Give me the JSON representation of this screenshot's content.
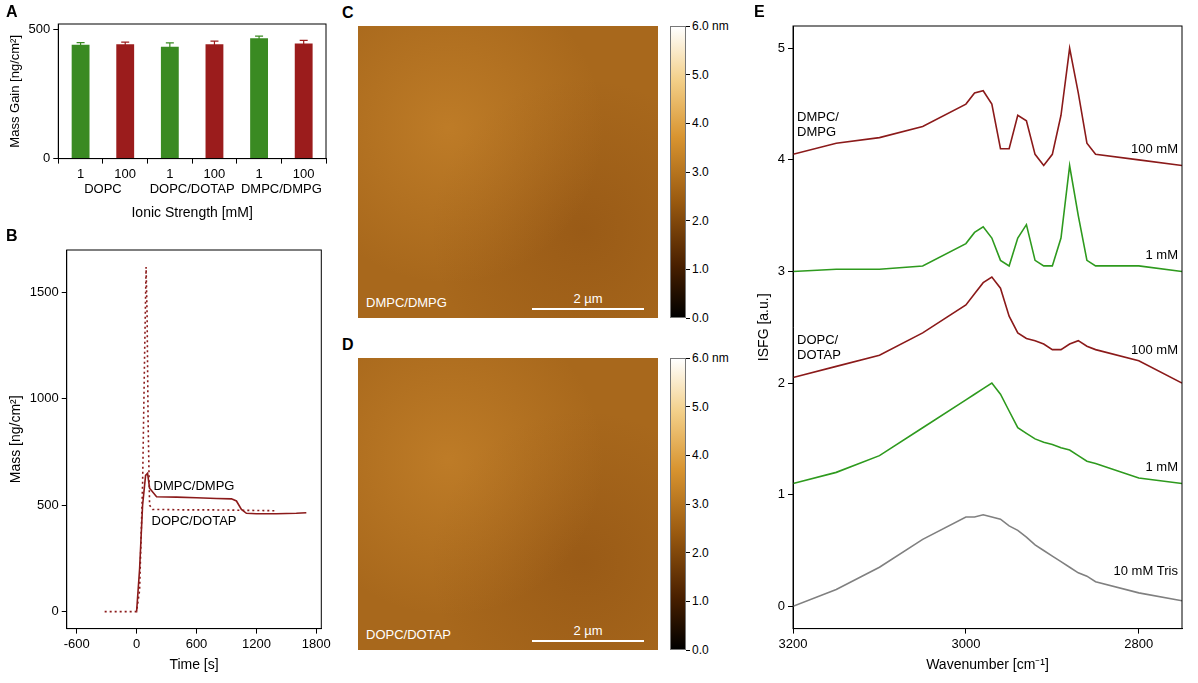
{
  "chart_data": [
    {
      "type": "bar",
      "panel": "A",
      "x_label": "Ionic Strength [mM]",
      "y_label": "Mass Gain [ng/cm²]",
      "categories": [
        "1",
        "100",
        "1",
        "100",
        "1",
        "100"
      ],
      "groups": [
        "DOPC",
        "DOPC/DOTAP",
        "DMPC/DMPG"
      ],
      "values": [
        440,
        442,
        432,
        442,
        465,
        445
      ],
      "errors": [
        8,
        8,
        15,
        12,
        8,
        12
      ],
      "colors": [
        "#3a8a22",
        "#9b1c1c",
        "#3a8a22",
        "#9b1c1c",
        "#3a8a22",
        "#9b1c1c"
      ],
      "ylim": [
        0,
        520
      ],
      "yticks": [
        0,
        500
      ],
      "grid": false
    },
    {
      "type": "line",
      "panel": "B",
      "x_label": "Time [s]",
      "y_label": "Mass [ng/cm²]",
      "xlim": [
        -700,
        1850
      ],
      "xticks": [
        -600,
        0,
        600,
        1200,
        1800
      ],
      "ylim": [
        -80,
        1700
      ],
      "yticks": [
        0,
        500,
        1000,
        1500
      ],
      "grid": false,
      "series": [
        {
          "name": "DMPC/DMPG",
          "color": "#8b1a1a",
          "line_style": "solid",
          "x": [
            0,
            30,
            60,
            90,
            110,
            130,
            200,
            400,
            600,
            800,
            950,
            1000,
            1050,
            1100,
            1200,
            1400,
            1600,
            1700
          ],
          "values": [
            0,
            200,
            500,
            640,
            650,
            580,
            540,
            538,
            535,
            532,
            530,
            520,
            480,
            462,
            460,
            460,
            462,
            465
          ]
        },
        {
          "name": "DOPC/DOTAP",
          "color": "#8b1a1a",
          "line_style": "dotted",
          "x": [
            -320,
            -100,
            0,
            30,
            60,
            80,
            95,
            105,
            115,
            130,
            160,
            250,
            500,
            800,
            1100,
            1400
          ],
          "values": [
            0,
            0,
            0,
            100,
            600,
            1200,
            1620,
            1400,
            900,
            500,
            480,
            480,
            478,
            478,
            476,
            474
          ]
        }
      ]
    },
    {
      "type": "image",
      "panel": "C",
      "label": "DMPC/DMPG",
      "scale_bar": "2 µm",
      "colorbar": {
        "range": [
          0,
          6
        ],
        "ticks": [
          {
            "value": 0,
            "label": "0.0"
          },
          {
            "value": 1,
            "label": "1.0"
          },
          {
            "value": 2,
            "label": "2.0"
          },
          {
            "value": 3,
            "label": "3.0"
          },
          {
            "value": 4,
            "label": "4.0"
          },
          {
            "value": 5,
            "label": "5.0"
          },
          {
            "value": 6,
            "label": "6.0 nm"
          }
        ]
      }
    },
    {
      "type": "image",
      "panel": "D",
      "label": "DOPC/DOTAP",
      "scale_bar": "2 µm",
      "colorbar": {
        "range": [
          0,
          6
        ],
        "ticks": [
          {
            "value": 0,
            "label": "0.0"
          },
          {
            "value": 1,
            "label": "1.0"
          },
          {
            "value": 2,
            "label": "2.0"
          },
          {
            "value": 3,
            "label": "3.0"
          },
          {
            "value": 4,
            "label": "4.0"
          },
          {
            "value": 5,
            "label": "5.0"
          },
          {
            "value": 6,
            "label": "6.0 nm"
          }
        ]
      }
    },
    {
      "type": "line",
      "panel": "E",
      "x_label": "Wavenumber [cm⁻¹]",
      "y_label": "ISFG [a.u.]",
      "xlim": [
        3200,
        2750
      ],
      "xticks": [
        3200,
        3000,
        2800
      ],
      "ylim": [
        -0.2,
        5.2
      ],
      "yticks": [
        0,
        1,
        2,
        3,
        4,
        5
      ],
      "grid": false,
      "x": [
        3200,
        3150,
        3100,
        3050,
        3000,
        2990,
        2980,
        2970,
        2960,
        2950,
        2940,
        2930,
        2920,
        2910,
        2900,
        2890,
        2880,
        2870,
        2860,
        2850,
        2800,
        2750
      ],
      "series": [
        {
          "name": "10 mM Tris",
          "color": "#808080",
          "values": [
            0,
            0.15,
            0.35,
            0.6,
            0.8,
            0.8,
            0.82,
            0.8,
            0.78,
            0.72,
            0.68,
            0.62,
            0.55,
            0.5,
            0.45,
            0.4,
            0.35,
            0.3,
            0.27,
            0.22,
            0.12,
            0.05
          ]
        },
        {
          "name": "1 mM",
          "group": "DOPC/DOTAP",
          "color": "#2e9a1e",
          "values": [
            1.1,
            1.2,
            1.35,
            1.6,
            1.85,
            1.9,
            1.95,
            2.0,
            1.9,
            1.75,
            1.6,
            1.55,
            1.5,
            1.47,
            1.45,
            1.42,
            1.4,
            1.35,
            1.3,
            1.28,
            1.15,
            1.1
          ]
        },
        {
          "name": "100 mM",
          "group": "DOPC/DOTAP",
          "color": "#8b1a1a",
          "values": [
            2.05,
            2.15,
            2.25,
            2.45,
            2.7,
            2.8,
            2.9,
            2.95,
            2.85,
            2.6,
            2.45,
            2.4,
            2.38,
            2.35,
            2.3,
            2.3,
            2.35,
            2.38,
            2.33,
            2.3,
            2.2,
            2.0
          ]
        },
        {
          "name": "1 mM",
          "group": "DMPC/DMPG",
          "color": "#2e9a1e",
          "values": [
            3.0,
            3.02,
            3.02,
            3.05,
            3.25,
            3.35,
            3.4,
            3.3,
            3.1,
            3.05,
            3.3,
            3.42,
            3.1,
            3.05,
            3.05,
            3.3,
            3.95,
            3.5,
            3.1,
            3.05,
            3.05,
            3.0
          ]
        },
        {
          "name": "100 mM",
          "group": "DMPC/DMPG",
          "color": "#8b1a1a",
          "values": [
            4.05,
            4.15,
            4.2,
            4.3,
            4.5,
            4.6,
            4.62,
            4.5,
            4.1,
            4.1,
            4.4,
            4.35,
            4.05,
            3.95,
            4.05,
            4.4,
            5.0,
            4.6,
            4.15,
            4.05,
            4.0,
            3.95
          ]
        }
      ]
    }
  ]
}
